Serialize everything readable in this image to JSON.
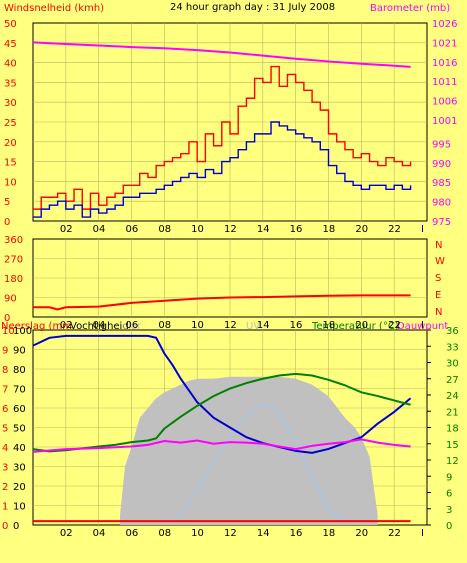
{
  "header": {
    "title": "24 hour graph day : 31 July 2008",
    "left_label": "Windsnelheid (kmh)",
    "right_label": "Barometer (mb)"
  },
  "colors": {
    "background": "#ffff80",
    "plot_bg": "#ffff80",
    "grid": "#b8b860",
    "axis_text": "#000000",
    "wind_gust": "#ff0000",
    "wind_avg": "#0000cc",
    "barometer": "#ff00ff",
    "direction": "#ff0000",
    "humidity": "#0000cc",
    "temperature": "#008000",
    "dewpoint": "#ff00ff",
    "solar": "#c0c0c0",
    "uv": "#a0c8f0",
    "rain": "#ff0000",
    "label_red": "#ff0000",
    "label_magenta": "#ff00ff",
    "label_green": "#008000",
    "label_black": "#000000"
  },
  "x_ticks": [
    "02",
    "04",
    "06",
    "08",
    "10",
    "12",
    "14",
    "16",
    "18",
    "20",
    "22",
    "I"
  ],
  "panel3_labels": {
    "rain": "Neerslag (mm",
    "humidity": "Vochtigheid",
    "solar": "olar",
    "uv": "UV",
    "temperature": "Temperatuur (°C)",
    "dewpoint": "Dauwpunt"
  },
  "direction_letters": [
    "N",
    "W",
    "S",
    "E",
    "N"
  ],
  "chart_data": [
    {
      "type": "line",
      "name": "wind-barometer",
      "x_unit": "hour",
      "left_axis": {
        "label": "Windsnelheid (kmh)",
        "ylim": [
          0,
          50
        ],
        "ticks": [
          0,
          5,
          10,
          15,
          20,
          25,
          30,
          35,
          40,
          45,
          50
        ]
      },
      "right_axis": {
        "label": "Barometer (mb)",
        "ylim": [
          975,
          1026
        ],
        "ticks": [
          975,
          980,
          985,
          990,
          995,
          1001,
          1006,
          1011,
          1016,
          1021,
          1026
        ]
      },
      "series": [
        {
          "axis": "left",
          "color": "#ff0000",
          "x": [
            0,
            0.5,
            1,
            1.5,
            2,
            2.5,
            3,
            3.5,
            4,
            4.5,
            5,
            5.5,
            6,
            6.5,
            7,
            7.5,
            8,
            8.5,
            9,
            9.5,
            10,
            10.5,
            11,
            11.5,
            12,
            12.5,
            13,
            13.5,
            14,
            14.5,
            15,
            15.5,
            16,
            16.5,
            17,
            17.5,
            18,
            18.5,
            19,
            19.5,
            20,
            20.5,
            21,
            21.5,
            22,
            22.5,
            23
          ],
          "y": [
            3,
            6,
            6,
            7,
            5,
            8,
            3,
            7,
            4,
            6,
            7,
            9,
            9,
            12,
            11,
            14,
            15,
            16,
            17,
            20,
            15,
            22,
            19,
            25,
            22,
            29,
            31,
            36,
            35,
            39,
            34,
            37,
            35,
            33,
            30,
            28,
            22,
            20,
            18,
            16,
            17,
            15,
            14,
            16,
            15,
            14,
            15
          ]
        },
        {
          "axis": "left",
          "color": "#0000cc",
          "x": [
            0,
            0.5,
            1,
            1.5,
            2,
            2.5,
            3,
            3.5,
            4,
            4.5,
            5,
            5.5,
            6,
            6.5,
            7,
            7.5,
            8,
            8.5,
            9,
            9.5,
            10,
            10.5,
            11,
            11.5,
            12,
            12.5,
            13,
            13.5,
            14,
            14.5,
            15,
            15.5,
            16,
            16.5,
            17,
            17.5,
            18,
            18.5,
            19,
            19.5,
            20,
            20.5,
            21,
            21.5,
            22,
            22.5,
            23
          ],
          "y": [
            1,
            3,
            4,
            5,
            3,
            4,
            1,
            3,
            2,
            3,
            4,
            6,
            6,
            7,
            7,
            8,
            9,
            10,
            11,
            12,
            11,
            13,
            12,
            15,
            16,
            18,
            20,
            22,
            22,
            25,
            24,
            23,
            22,
            21,
            20,
            18,
            14,
            12,
            10,
            9,
            8,
            9,
            9,
            8,
            9,
            8,
            9
          ]
        },
        {
          "axis": "right",
          "color": "#ff00ff",
          "x": [
            0,
            2,
            4,
            6,
            8,
            10,
            12,
            14,
            16,
            18,
            20,
            22,
            23
          ],
          "y": [
            1021,
            1020.6,
            1020.2,
            1019.8,
            1019.5,
            1019.0,
            1018.4,
            1017.6,
            1016.8,
            1016.1,
            1015.5,
            1015.0,
            1014.7
          ]
        }
      ]
    },
    {
      "type": "line",
      "name": "wind-direction",
      "x_unit": "hour",
      "left_axis": {
        "ylim": [
          0,
          360
        ],
        "ticks": [
          0,
          90,
          180,
          270,
          360
        ]
      },
      "series": [
        {
          "color": "#ff0000",
          "x": [
            0,
            1,
            1.5,
            2,
            4,
            6,
            8,
            10,
            12,
            14,
            16,
            18,
            20,
            22,
            23
          ],
          "y": [
            45,
            45,
            35,
            45,
            48,
            65,
            75,
            85,
            90,
            92,
            95,
            98,
            100,
            100,
            100
          ]
        }
      ]
    },
    {
      "type": "line",
      "name": "rain-humidity-solar-temperature",
      "x_unit": "hour",
      "left_axis_rain": {
        "label": "Neerslag (mm",
        "ylim": [
          0,
          10
        ],
        "ticks": [
          0,
          1,
          2,
          3,
          4,
          5,
          6,
          7,
          8,
          9,
          10
        ]
      },
      "left_axis_humidity": {
        "label": "Vochtigheid",
        "ylim": [
          0,
          100
        ],
        "ticks": [
          0,
          10,
          20,
          30,
          40,
          50,
          60,
          70,
          80,
          90,
          100
        ]
      },
      "right_axis": {
        "label": "Temperatuur (°C)",
        "ylim": [
          0,
          36
        ],
        "ticks": [
          0,
          3,
          6,
          9,
          12,
          15,
          18,
          21,
          24,
          27,
          30,
          33,
          36
        ]
      },
      "series": [
        {
          "axis": "humidity",
          "color": "#0000cc",
          "x": [
            0,
            1,
            2,
            4,
            6,
            7,
            7.5,
            8,
            8.5,
            9,
            10,
            11,
            12,
            13,
            14,
            15,
            16,
            17,
            18,
            19,
            20,
            21,
            22,
            23
          ],
          "y": [
            92,
            96,
            97,
            97,
            97,
            97,
            96,
            88,
            82,
            75,
            63,
            55,
            50,
            45,
            42,
            40,
            38,
            37,
            39,
            42,
            45,
            52,
            58,
            65
          ]
        },
        {
          "axis": "temperature",
          "color": "#008000",
          "x": [
            0,
            1,
            2,
            4,
            5,
            6,
            7,
            7.5,
            8,
            9,
            10,
            11,
            12,
            13,
            14,
            15,
            16,
            17,
            18,
            19,
            20,
            21,
            22,
            23
          ],
          "y": [
            14,
            13.6,
            13.8,
            14.5,
            14.8,
            15.3,
            15.6,
            16,
            17.8,
            20,
            22,
            23.8,
            25.2,
            26.2,
            27,
            27.6,
            27.9,
            27.6,
            26.8,
            25.8,
            24.5,
            23.8,
            23,
            22.2
          ]
        },
        {
          "axis": "temperature",
          "color": "#ff00ff",
          "x": [
            0,
            2,
            4,
            6,
            7,
            8,
            9,
            10,
            11,
            12,
            13,
            14,
            15,
            16,
            17,
            18,
            19,
            20,
            21,
            22,
            23
          ],
          "y": [
            13.5,
            14,
            14.2,
            14.5,
            14.8,
            15.5,
            15.2,
            15.6,
            15,
            15.3,
            15.2,
            15,
            14.5,
            14,
            14.6,
            15,
            15.3,
            15.8,
            15.2,
            14.8,
            14.5
          ]
        },
        {
          "axis": "rain",
          "color": "#ff0000",
          "x": [
            0,
            23
          ],
          "y": [
            0.2,
            0.2
          ]
        }
      ]
    }
  ]
}
